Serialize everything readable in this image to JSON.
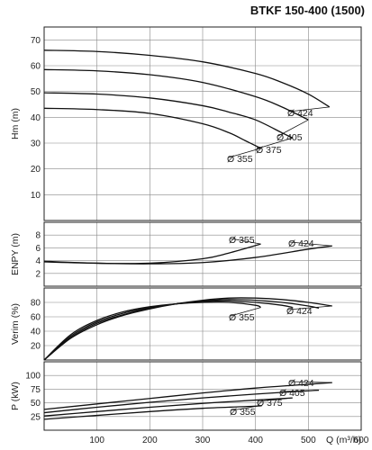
{
  "title": "BTKF 150-400 (1500)",
  "chart_data": [
    {
      "type": "line",
      "ylabel": "Hm (m)",
      "yticks": [
        10,
        20,
        30,
        40,
        50,
        60,
        70
      ],
      "ylim": [
        0,
        75
      ],
      "xlim": [
        0,
        600
      ],
      "grid": true,
      "series": [
        {
          "name": "Ø 424",
          "x": [
            0,
            100,
            200,
            300,
            400,
            450,
            500,
            540
          ],
          "y": [
            66,
            65.5,
            64,
            61.5,
            57,
            53.5,
            49,
            44
          ]
        },
        {
          "name": "Ø 405",
          "x": [
            0,
            100,
            200,
            300,
            400,
            450,
            500
          ],
          "y": [
            58.5,
            58,
            56.5,
            53.5,
            48,
            44,
            39
          ]
        },
        {
          "name": "Ø 375",
          "x": [
            0,
            100,
            200,
            300,
            350,
            400,
            450,
            470
          ],
          "y": [
            49.5,
            49,
            47.5,
            44.5,
            42,
            39,
            34,
            32
          ]
        },
        {
          "name": "Ø 355",
          "x": [
            0,
            100,
            200,
            300,
            350,
            380,
            410
          ],
          "y": [
            43.5,
            43,
            41.5,
            37.5,
            34,
            31,
            28
          ]
        }
      ]
    },
    {
      "type": "line",
      "ylabel": "ENPY (m)",
      "yticks": [
        2,
        4,
        6,
        8
      ],
      "ylim": [
        0,
        10
      ],
      "xlim": [
        0,
        600
      ],
      "grid": true,
      "series": [
        {
          "name": "Ø 355",
          "x": [
            0,
            100,
            200,
            300,
            350,
            410
          ],
          "y": [
            3.8,
            3.6,
            3.6,
            4.3,
            5.2,
            6.6
          ]
        },
        {
          "name": "Ø 424",
          "x": [
            0,
            100,
            200,
            300,
            400,
            500,
            545
          ],
          "y": [
            3.9,
            3.6,
            3.5,
            3.7,
            4.5,
            5.8,
            6.3
          ]
        }
      ]
    },
    {
      "type": "line",
      "ylabel": "Verim (%)",
      "yticks": [
        20,
        40,
        60,
        80
      ],
      "ylim": [
        0,
        100
      ],
      "xlim": [
        0,
        600
      ],
      "grid": true,
      "series": [
        {
          "name": "Ø 355",
          "x": [
            0,
            50,
            100,
            150,
            200,
            250,
            300,
            350,
            400,
            410
          ],
          "y": [
            0,
            35,
            55,
            67,
            74,
            78,
            80,
            80,
            76,
            73
          ]
        },
        {
          "name": "Ø 375",
          "x": [
            0,
            50,
            100,
            150,
            200,
            250,
            300,
            350,
            400,
            450,
            470
          ],
          "y": [
            0,
            33,
            53,
            65,
            73,
            78,
            81,
            82,
            80,
            76,
            73
          ]
        },
        {
          "name": "Ø 405",
          "x": [
            0,
            50,
            100,
            150,
            200,
            250,
            300,
            350,
            400,
            450,
            500,
            520
          ],
          "y": [
            0,
            31,
            51,
            63,
            72,
            78,
            82,
            84,
            83,
            80,
            75,
            72
          ]
        },
        {
          "name": "Ø 424",
          "x": [
            0,
            50,
            100,
            150,
            200,
            250,
            300,
            350,
            400,
            450,
            500,
            545
          ],
          "y": [
            0,
            30,
            49,
            62,
            71,
            78,
            83,
            86,
            86,
            84,
            80,
            75
          ]
        }
      ]
    },
    {
      "type": "line",
      "ylabel": "P (kW)",
      "yticks": [
        25,
        50,
        75,
        100
      ],
      "ylim": [
        0,
        125
      ],
      "xlim": [
        0,
        600
      ],
      "xticks": [
        100,
        200,
        300,
        400,
        500,
        600
      ],
      "xlabel": "Q (m³/h)",
      "grid": true,
      "series": [
        {
          "name": "Ø 424",
          "x": [
            0,
            100,
            200,
            300,
            400,
            500,
            545
          ],
          "y": [
            38,
            48,
            58,
            68,
            77,
            84,
            87
          ]
        },
        {
          "name": "Ø 405",
          "x": [
            0,
            100,
            200,
            300,
            400,
            500,
            520
          ],
          "y": [
            32,
            42,
            51,
            59,
            66,
            72,
            73
          ]
        },
        {
          "name": "Ø 375",
          "x": [
            0,
            100,
            200,
            300,
            400,
            470
          ],
          "y": [
            26,
            34,
            42,
            49,
            55,
            59
          ]
        },
        {
          "name": "Ø 355",
          "x": [
            0,
            100,
            200,
            300,
            400,
            410
          ],
          "y": [
            20,
            27,
            34,
            40,
            44,
            45
          ]
        }
      ]
    }
  ]
}
